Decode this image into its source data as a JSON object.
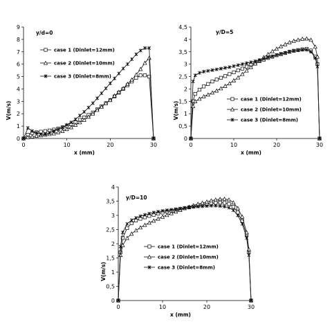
{
  "chart_data": [
    {
      "type": "line",
      "title": "y/d=0",
      "xlabel": "x (mm)",
      "ylabel": "V(m/s)",
      "xlim": [
        0,
        30
      ],
      "ylim": [
        0,
        9
      ],
      "xticks": [
        0,
        10,
        20,
        30
      ],
      "yticks": [
        0,
        1,
        2,
        3,
        4,
        5,
        6,
        7,
        8,
        9
      ],
      "grid": false,
      "legend_position": "left",
      "series": [
        {
          "name": "case 1 (Dinlet=12mm)",
          "marker": "square",
          "x": [
            0,
            1,
            2,
            3,
            4,
            5,
            6,
            7,
            8,
            9,
            10,
            11,
            12,
            13,
            14,
            15,
            16,
            17,
            18,
            19,
            20,
            21,
            22,
            23,
            24,
            25,
            26,
            27,
            28,
            29,
            30
          ],
          "y": [
            0,
            0.3,
            0.45,
            0.5,
            0.55,
            0.6,
            0.65,
            0.72,
            0.8,
            0.9,
            1.0,
            1.15,
            1.3,
            1.5,
            1.7,
            1.9,
            2.1,
            2.35,
            2.6,
            2.85,
            3.1,
            3.4,
            3.7,
            4.0,
            4.3,
            4.6,
            4.9,
            5.1,
            5.1,
            5.0,
            0
          ]
        },
        {
          "name": "case 2 (Dinlet=10mm)",
          "marker": "triangle",
          "x": [
            0,
            1,
            2,
            3,
            4,
            5,
            6,
            7,
            8,
            9,
            10,
            11,
            12,
            13,
            14,
            15,
            16,
            17,
            18,
            19,
            20,
            21,
            22,
            23,
            24,
            25,
            26,
            27,
            28,
            29,
            30
          ],
          "y": [
            0,
            0.1,
            0.15,
            0.2,
            0.25,
            0.3,
            0.35,
            0.4,
            0.5,
            0.6,
            0.75,
            0.9,
            1.1,
            1.3,
            1.5,
            1.75,
            2.0,
            2.3,
            2.55,
            2.85,
            3.1,
            3.45,
            3.75,
            4.05,
            4.4,
            4.75,
            5.15,
            5.6,
            6.1,
            6.5,
            0
          ]
        },
        {
          "name": "case 3 (Dinlet=8mm)",
          "marker": "star",
          "x": [
            0,
            1,
            2,
            3,
            4,
            5,
            6,
            7,
            8,
            9,
            10,
            11,
            12,
            13,
            14,
            15,
            16,
            17,
            18,
            19,
            20,
            21,
            22,
            23,
            24,
            25,
            26,
            27,
            28,
            29,
            30
          ],
          "y": [
            0,
            0.85,
            0.6,
            0.45,
            0.35,
            0.35,
            0.45,
            0.6,
            0.75,
            0.9,
            1.1,
            1.3,
            1.55,
            1.85,
            2.15,
            2.5,
            2.85,
            3.25,
            3.65,
            4.05,
            4.45,
            4.85,
            5.25,
            5.65,
            6.0,
            6.4,
            6.8,
            7.1,
            7.3,
            7.3,
            0
          ]
        }
      ]
    },
    {
      "type": "line",
      "title": "y/D=5",
      "xlabel": "x (mm)",
      "ylabel": "V(m/s)",
      "xlim": [
        0,
        30
      ],
      "ylim": [
        0,
        4.5
      ],
      "xticks": [
        0,
        10,
        20,
        30
      ],
      "yticks": [
        0,
        0.5,
        1,
        1.5,
        2,
        2.5,
        3,
        3.5,
        4,
        4.5
      ],
      "grid": false,
      "legend_position": "bottom-right",
      "series": [
        {
          "name": "case 1 (Dinlet=12mm)",
          "marker": "square",
          "x": [
            0,
            0.5,
            1,
            2,
            3,
            4,
            5,
            6,
            7,
            8,
            9,
            10,
            11,
            12,
            13,
            14,
            15,
            16,
            17,
            18,
            19,
            20,
            21,
            22,
            23,
            24,
            25,
            26,
            27,
            28,
            29,
            29.5,
            30
          ],
          "y": [
            0,
            1.5,
            1.8,
            1.97,
            2.1,
            2.2,
            2.3,
            2.38,
            2.45,
            2.52,
            2.6,
            2.67,
            2.75,
            2.82,
            2.9,
            2.98,
            3.05,
            3.12,
            3.18,
            3.25,
            3.3,
            3.36,
            3.4,
            3.45,
            3.5,
            3.54,
            3.57,
            3.6,
            3.62,
            3.55,
            3.3,
            3.0,
            0
          ]
        },
        {
          "name": "case 2 (Dinlet=10mm)",
          "marker": "triangle",
          "x": [
            0,
            0.5,
            1,
            2,
            3,
            4,
            5,
            6,
            7,
            8,
            9,
            10,
            11,
            12,
            13,
            14,
            15,
            16,
            17,
            18,
            19,
            20,
            21,
            22,
            23,
            24,
            25,
            26,
            27,
            28,
            29,
            29.5,
            30
          ],
          "y": [
            0,
            1.3,
            1.5,
            1.6,
            1.7,
            1.77,
            1.85,
            1.93,
            2.02,
            2.12,
            2.22,
            2.34,
            2.46,
            2.6,
            2.74,
            2.88,
            3.02,
            3.15,
            3.28,
            3.4,
            3.52,
            3.62,
            3.72,
            3.8,
            3.88,
            3.94,
            3.98,
            4.02,
            4.03,
            3.98,
            3.7,
            3.3,
            0
          ]
        },
        {
          "name": "case 3 (Dinlet=8mm)",
          "marker": "star",
          "x": [
            0,
            0.5,
            1,
            2,
            3,
            4,
            5,
            6,
            7,
            8,
            9,
            10,
            11,
            12,
            13,
            14,
            15,
            16,
            17,
            18,
            19,
            20,
            21,
            22,
            23,
            24,
            25,
            26,
            27,
            28,
            29,
            29.5,
            30
          ],
          "y": [
            0,
            2.3,
            2.55,
            2.65,
            2.7,
            2.73,
            2.76,
            2.79,
            2.82,
            2.85,
            2.88,
            2.92,
            2.96,
            3.0,
            3.04,
            3.08,
            3.12,
            3.17,
            3.22,
            3.27,
            3.32,
            3.37,
            3.42,
            3.46,
            3.5,
            3.54,
            3.56,
            3.58,
            3.58,
            3.5,
            3.25,
            2.9,
            0
          ]
        }
      ]
    },
    {
      "type": "line",
      "title": "y/D=10",
      "xlabel": "x (mm)",
      "ylabel": "V(m/s)",
      "xlim": [
        0,
        30
      ],
      "ylim": [
        0,
        4
      ],
      "xticks": [
        0,
        10,
        20,
        30
      ],
      "yticks": [
        0,
        0.5,
        1,
        1.5,
        2,
        2.5,
        3,
        3.5,
        4
      ],
      "grid": false,
      "legend_position": "bottom-right",
      "series": [
        {
          "name": "case 1 (Dinlet=12mm)",
          "marker": "square",
          "x": [
            0,
            0.5,
            1,
            2,
            3,
            4,
            5,
            6,
            7,
            8,
            9,
            10,
            11,
            12,
            13,
            14,
            15,
            16,
            17,
            18,
            19,
            20,
            21,
            22,
            23,
            24,
            25,
            26,
            27,
            28,
            29,
            29.5,
            30
          ],
          "y": [
            0,
            1.7,
            2.2,
            2.55,
            2.72,
            2.82,
            2.88,
            2.93,
            2.98,
            3.02,
            3.06,
            3.1,
            3.13,
            3.16,
            3.19,
            3.22,
            3.25,
            3.28,
            3.31,
            3.34,
            3.37,
            3.4,
            3.42,
            3.44,
            3.45,
            3.44,
            3.4,
            3.3,
            3.1,
            2.8,
            2.3,
            1.7,
            0
          ]
        },
        {
          "name": "case 2 (Dinlet=10mm)",
          "marker": "triangle",
          "x": [
            0,
            0.5,
            1,
            2,
            3,
            4,
            5,
            6,
            7,
            8,
            9,
            10,
            11,
            12,
            13,
            14,
            15,
            16,
            17,
            18,
            19,
            20,
            21,
            22,
            23,
            24,
            25,
            26,
            27,
            28,
            29,
            29.5,
            30
          ],
          "y": [
            0,
            1.6,
            1.95,
            2.2,
            2.35,
            2.47,
            2.57,
            2.66,
            2.74,
            2.81,
            2.88,
            2.95,
            3.01,
            3.07,
            3.13,
            3.19,
            3.25,
            3.3,
            3.35,
            3.4,
            3.44,
            3.48,
            3.52,
            3.55,
            3.57,
            3.58,
            3.55,
            3.45,
            3.25,
            2.95,
            2.4,
            1.8,
            0
          ]
        },
        {
          "name": "case 3 (Dinlet=8mm)",
          "marker": "star",
          "x": [
            0,
            0.5,
            1,
            2,
            3,
            4,
            5,
            6,
            7,
            8,
            9,
            10,
            11,
            12,
            13,
            14,
            15,
            16,
            17,
            18,
            19,
            20,
            21,
            22,
            23,
            24,
            25,
            26,
            27,
            28,
            29,
            29.5,
            30
          ],
          "y": [
            0,
            1.9,
            2.4,
            2.7,
            2.83,
            2.91,
            2.97,
            3.02,
            3.06,
            3.1,
            3.13,
            3.16,
            3.18,
            3.2,
            3.22,
            3.24,
            3.26,
            3.28,
            3.3,
            3.31,
            3.32,
            3.33,
            3.34,
            3.34,
            3.33,
            3.31,
            3.27,
            3.18,
            3.0,
            2.7,
            2.2,
            1.6,
            0
          ]
        }
      ]
    }
  ]
}
